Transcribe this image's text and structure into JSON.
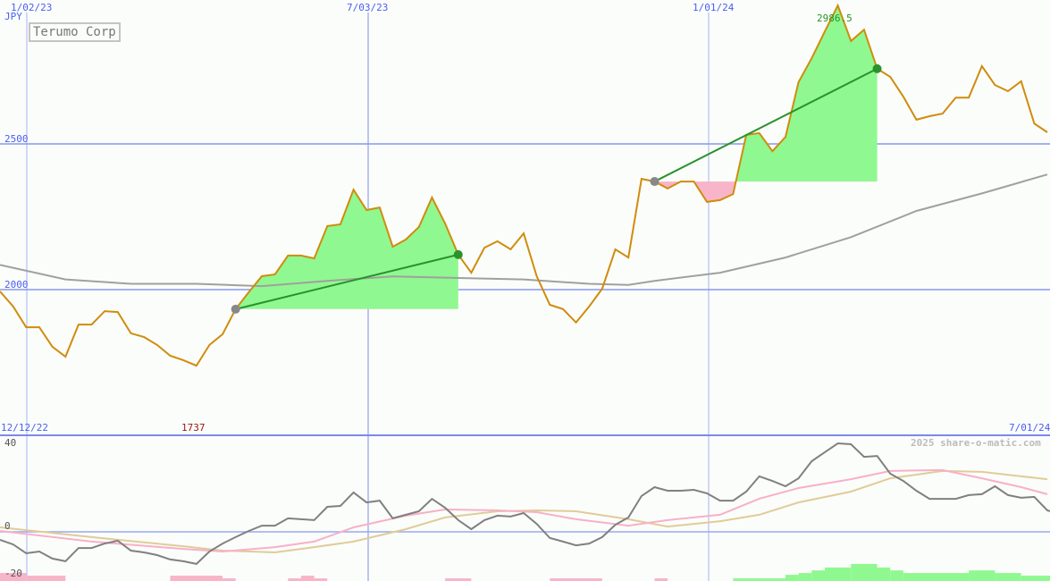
{
  "header": {
    "title": "Terumo Corp",
    "currency": "JPY",
    "watermark": "2025 share-o-matic.com"
  },
  "colors": {
    "price_line": "#d08c0c",
    "moving_average": "#a0a0a0",
    "gain_fill": "#90f890",
    "loss_fill": "#f8b4c8",
    "trade_line": "#2a922a",
    "grid": "#8898ee",
    "oscillator_main": "#808080",
    "oscillator_signal_pink": "#f8b0c8",
    "oscillator_signal_tan": "#e0cc98"
  },
  "chart_data": [
    {
      "type": "line",
      "title": "Terumo Corp",
      "ylabel": "JPY",
      "x_tick_labels": [
        "1/02/23",
        "7/03/23",
        "1/01/24"
      ],
      "y_ticks": [
        2000,
        2500
      ],
      "y_tick_labels": [
        "2000",
        "2500"
      ],
      "ylim": [
        1600,
        3000
      ],
      "grid": true,
      "annotations": {
        "max_label": "2986.5",
        "min_label": "1737"
      },
      "price": [
        1994,
        1942,
        1871,
        1871,
        1804,
        1770,
        1880,
        1880,
        1926,
        1923,
        1850,
        1837,
        1810,
        1773,
        1758,
        1739,
        1810,
        1847,
        1933,
        1991,
        2046,
        2052,
        2117,
        2117,
        2107,
        2218,
        2224,
        2343,
        2273,
        2282,
        2147,
        2172,
        2215,
        2316,
        2227,
        2120,
        2058,
        2144,
        2166,
        2138,
        2193,
        2046,
        1948,
        1933,
        1887,
        1942,
        2003,
        2138,
        2110,
        2380,
        2371,
        2347,
        2371,
        2371,
        2301,
        2307,
        2328,
        2531,
        2537,
        2475,
        2524,
        2712,
        2794,
        2886,
        2975,
        2853,
        2892,
        2758,
        2730,
        2662,
        2583,
        2595,
        2604,
        2659,
        2659,
        2767,
        2702,
        2681,
        2715,
        2570,
        2540
      ],
      "moving_average": {
        "index": [
          0,
          5,
          10,
          15,
          20,
          25,
          30,
          35,
          40,
          45,
          48,
          50,
          55,
          60,
          65,
          70,
          75,
          80
        ],
        "values": [
          2085,
          2035,
          2020,
          2020,
          2012,
          2030,
          2045,
          2040,
          2035,
          2020,
          2016,
          2030,
          2058,
          2110,
          2180,
          2270,
          2330,
          2395
        ]
      },
      "trades": [
        {
          "entry_index": 18,
          "entry_price": 1933,
          "exit_index": 35,
          "exit_price": 2120
        },
        {
          "entry_index": 50,
          "entry_price": 2371,
          "exit_index": 67,
          "exit_price": 2758
        }
      ]
    },
    {
      "type": "line",
      "x_tick_labels": [
        "12/12/22",
        "7/01/24"
      ],
      "y_ticks": [
        40,
        0,
        -20
      ],
      "y_tick_labels": [
        "40",
        "0",
        "-20"
      ],
      "ylim": [
        -22,
        44
      ],
      "main": [
        -3.6,
        -5.7,
        -9.7,
        -8.9,
        -12.1,
        -13.3,
        -7.3,
        -7.3,
        -5.3,
        -4.0,
        -8.5,
        -9.3,
        -10.5,
        -12.5,
        -13.3,
        -14.5,
        -8.9,
        -5.3,
        -2.4,
        0.4,
        2.8,
        2.8,
        6.1,
        5.7,
        5.3,
        11.3,
        11.7,
        17.8,
        13.3,
        14.1,
        6.1,
        7.7,
        9.3,
        14.9,
        10.9,
        5.3,
        1.2,
        5.3,
        7.3,
        6.9,
        8.5,
        3.6,
        -2.8,
        -4.4,
        -6.1,
        -5.3,
        -2.4,
        3.2,
        6.5,
        16.2,
        20.2,
        18.6,
        18.6,
        19.0,
        17.4,
        14.1,
        14.1,
        18.2,
        25.1,
        23.0,
        20.6,
        24.2,
        31.9,
        36.0,
        40.0,
        39.6,
        33.9,
        34.3,
        26.3,
        23.0,
        18.6,
        14.9,
        14.9,
        14.9,
        16.6,
        17.0,
        20.6,
        16.6,
        15.4,
        15.8,
        9.7,
        8.1
      ],
      "signal_pink": {
        "index": [
          0,
          7,
          14,
          17,
          21,
          24,
          27,
          31,
          34,
          38,
          41,
          44,
          48,
          51,
          55,
          58,
          61,
          65,
          68,
          72,
          75,
          78,
          80
        ],
        "values": [
          0.4,
          -4.4,
          -7.7,
          -8.9,
          -6.9,
          -4.4,
          2.0,
          7.3,
          10.1,
          9.7,
          8.9,
          5.7,
          2.8,
          5.3,
          7.7,
          15.0,
          19.8,
          23.8,
          27.5,
          27.9,
          24.2,
          20.2,
          17.0
        ]
      },
      "signal_tan": {
        "index": [
          0,
          7,
          14,
          17,
          21,
          24,
          27,
          31,
          34,
          38,
          41,
          44,
          48,
          51,
          55,
          58,
          61,
          65,
          68,
          72,
          75,
          78,
          80
        ],
        "values": [
          2.0,
          -2.4,
          -6.5,
          -8.5,
          -9.3,
          -6.9,
          -4.4,
          1.2,
          6.5,
          9.3,
          9.7,
          9.3,
          5.7,
          2.4,
          4.8,
          7.7,
          13.3,
          18.2,
          24.2,
          27.5,
          27.1,
          25.1,
          23.8
        ]
      },
      "histogram": [
        [
          0,
          2,
          -3.6
        ],
        [
          2,
          5,
          -2.4
        ],
        [
          13,
          17,
          -2.4
        ],
        [
          17,
          18,
          -1.2
        ],
        [
          22,
          23,
          -1.2
        ],
        [
          23,
          24,
          -2.4
        ],
        [
          24,
          25,
          -1.2
        ],
        [
          34,
          36,
          -1.2
        ],
        [
          42,
          46,
          -1.2
        ],
        [
          50,
          51,
          -1.2
        ],
        [
          56,
          60,
          1.2
        ],
        [
          60,
          61,
          2.8
        ],
        [
          61,
          62,
          3.6
        ],
        [
          62,
          63,
          4.8
        ],
        [
          63,
          65,
          6.1
        ],
        [
          65,
          67,
          7.7
        ],
        [
          67,
          68,
          6.1
        ],
        [
          68,
          69,
          4.8
        ],
        [
          69,
          74,
          3.6
        ],
        [
          74,
          76,
          4.8
        ],
        [
          76,
          78,
          3.6
        ],
        [
          78,
          81,
          2.4
        ]
      ]
    }
  ]
}
